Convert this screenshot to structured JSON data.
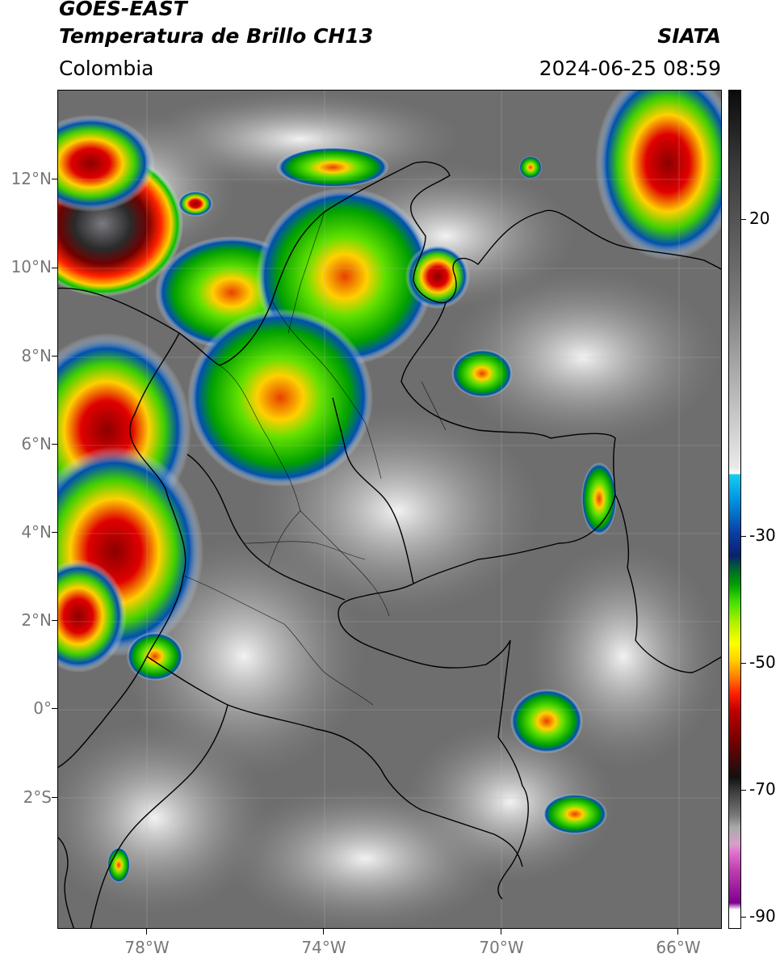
{
  "header": {
    "satellite": "GOES-EAST",
    "product": "Temperatura de Brillo CH13",
    "region": "Colombia",
    "organization": "SIATA",
    "timestamp": "2024-06-25 08:59"
  },
  "map": {
    "projection": "lat-lon",
    "lon_range": [
      -80.0,
      -65.0
    ],
    "lat_range": [
      -4.7,
      14.0
    ],
    "lat_ticks": [
      "12°N",
      "10°N",
      "8°N",
      "6°N",
      "4°N",
      "2°N",
      "0°",
      "2°S"
    ],
    "lon_ticks": [
      "78°W",
      "74°W",
      "70°W",
      "66°W"
    ],
    "colors": {
      "warm_clouds": "#6e6e6e",
      "cold_tops_core": "#8b0000",
      "convective_ring": "#00cc00"
    }
  },
  "colorbar": {
    "tick_labels": [
      "20",
      "-30",
      "-50",
      "-70",
      "-90"
    ],
    "unit": ""
  }
}
